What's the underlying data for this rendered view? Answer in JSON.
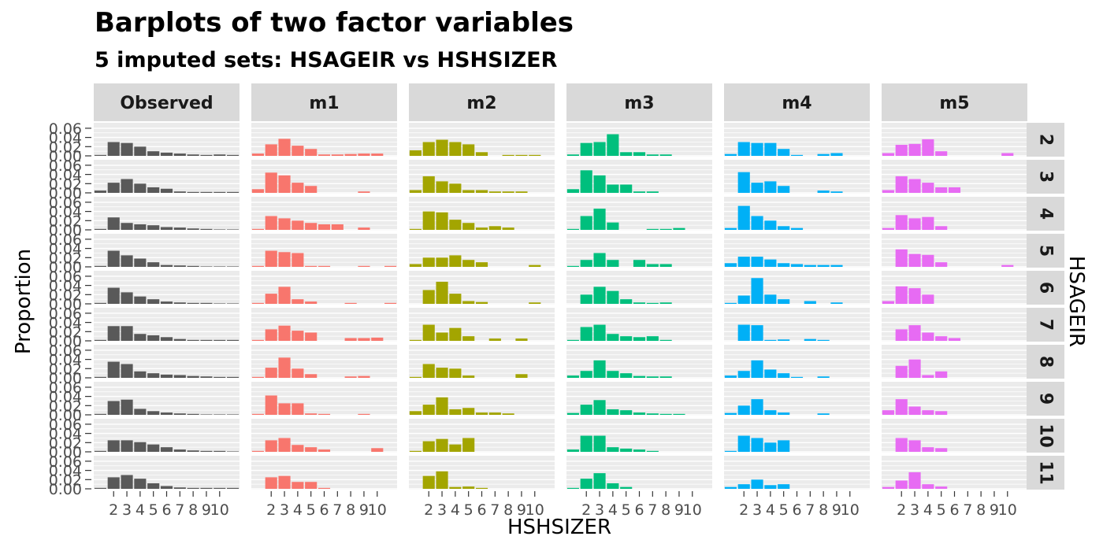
{
  "chart_data": {
    "type": "bar",
    "title": "Barplots of two factor variables",
    "subtitle": "5  imputed sets:  HSAGEIR vs HSHSIZER",
    "xlabel": "HSHSIZER",
    "ylabel": "Proportion",
    "facet_row_label": "HSAGEIR",
    "x_tick_labels": [
      "2",
      "3",
      "4",
      "5",
      "6",
      "7",
      "8",
      "9",
      "10"
    ],
    "y_tick_labels": [
      "0.00",
      "0.02",
      "0.04",
      "0.06"
    ],
    "ylim": [
      0,
      0.065
    ],
    "grid": true,
    "x_categories": [
      "1",
      "2",
      "3",
      "4",
      "5",
      "6",
      "7",
      "8",
      "9",
      "10",
      "11"
    ],
    "columns": [
      {
        "name": "Observed",
        "color": "#595959"
      },
      {
        "name": "m1",
        "color": "#F8766D"
      },
      {
        "name": "m2",
        "color": "#A3A500"
      },
      {
        "name": "m3",
        "color": "#00BF7D"
      },
      {
        "name": "m4",
        "color": "#00B0F6"
      },
      {
        "name": "m5",
        "color": "#E76BF3"
      }
    ],
    "rows": [
      "2",
      "3",
      "4",
      "5",
      "6",
      "7",
      "8",
      "9",
      "10",
      "11"
    ],
    "values": [
      [
        [
          0.002,
          0.03,
          0.028,
          0.02,
          0.01,
          0.007,
          0.005,
          0.003,
          0.002,
          0.003,
          0.002
        ],
        [
          0.005,
          0.022,
          0.03,
          0.02,
          0.012,
          0.009,
          0.003,
          0.002,
          0.002,
          0.002,
          0.002
        ],
        [
          0.002,
          0.027,
          0.015,
          0.012,
          0.01,
          0.006,
          0.005,
          0.003,
          0.002,
          0.001,
          0.001
        ],
        [
          0.002,
          0.035,
          0.025,
          0.018,
          0.01,
          0.004,
          0.003,
          0.002,
          0.001,
          0.001,
          0.001
        ],
        [
          0.002,
          0.035,
          0.025,
          0.016,
          0.01,
          0.005,
          0.003,
          0.002,
          0.002,
          0.001,
          0.001
        ],
        [
          0.002,
          0.032,
          0.032,
          0.015,
          0.012,
          0.008,
          0.004,
          0.002,
          0.002,
          0.002,
          0.002
        ],
        [
          0.002,
          0.035,
          0.03,
          0.014,
          0.01,
          0.007,
          0.006,
          0.004,
          0.003,
          0.002,
          0.002
        ],
        [
          0.002,
          0.03,
          0.033,
          0.013,
          0.008,
          0.005,
          0.003,
          0.002,
          0.001,
          0.001,
          0.001
        ],
        [
          0.002,
          0.025,
          0.025,
          0.021,
          0.016,
          0.01,
          0.005,
          0.003,
          0.002,
          0.002,
          0.001
        ],
        [
          0.002,
          0.025,
          0.03,
          0.022,
          0.012,
          0.006,
          0.003,
          0.002,
          0.002,
          0.002,
          0.002
        ]
      ],
      [
        [
          0.005,
          0.025,
          0.037,
          0.022,
          0.015,
          0.003,
          0.003,
          0.004,
          0.005,
          0.005,
          0.0
        ],
        [
          0.008,
          0.044,
          0.038,
          0.022,
          0.015,
          0.0,
          0.0,
          0.0,
          0.003,
          0.0,
          0.0
        ],
        [
          0.002,
          0.03,
          0.025,
          0.02,
          0.015,
          0.012,
          0.012,
          0.0,
          0.005,
          0.0,
          0.0
        ],
        [
          0.002,
          0.035,
          0.032,
          0.03,
          0.002,
          0.002,
          0.0,
          0.0,
          0.002,
          0.0,
          0.002
        ],
        [
          0.002,
          0.022,
          0.037,
          0.01,
          0.005,
          0.0,
          0.0,
          0.002,
          0.0,
          0.0,
          0.002
        ],
        [
          0.002,
          0.025,
          0.033,
          0.022,
          0.018,
          0.0,
          0.0,
          0.006,
          0.006,
          0.007,
          0.0
        ],
        [
          0.002,
          0.022,
          0.044,
          0.02,
          0.008,
          0.0,
          0.0,
          0.003,
          0.004,
          0.0,
          0.0
        ],
        [
          0.002,
          0.042,
          0.025,
          0.025,
          0.003,
          0.002,
          0.0,
          0.0,
          0.002,
          0.0,
          0.0
        ],
        [
          0.002,
          0.025,
          0.03,
          0.015,
          0.01,
          0.005,
          0.0,
          0.0,
          0.0,
          0.008,
          0.0
        ],
        [
          0.0,
          0.025,
          0.028,
          0.015,
          0.015,
          0.002,
          0.0,
          0.0,
          0.0,
          0.0,
          0.0
        ]
      ],
      [
        [
          0.012,
          0.03,
          0.035,
          0.03,
          0.025,
          0.008,
          0.0,
          0.002,
          0.002,
          0.002,
          0.0
        ],
        [
          0.006,
          0.036,
          0.025,
          0.02,
          0.006,
          0.006,
          0.003,
          0.003,
          0.003,
          0.0,
          0.0
        ],
        [
          0.002,
          0.04,
          0.038,
          0.022,
          0.015,
          0.005,
          0.008,
          0.005,
          0.0,
          0.0,
          0.0
        ],
        [
          0.006,
          0.02,
          0.02,
          0.025,
          0.015,
          0.01,
          0.0,
          0.0,
          0.0,
          0.004,
          0.0
        ],
        [
          0.0,
          0.03,
          0.048,
          0.022,
          0.006,
          0.004,
          0.0,
          0.0,
          0.0,
          0.003,
          0.0
        ],
        [
          0.002,
          0.035,
          0.018,
          0.028,
          0.01,
          0.0,
          0.005,
          0.0,
          0.005,
          0.0,
          0.0
        ],
        [
          0.002,
          0.03,
          0.022,
          0.02,
          0.005,
          0.0,
          0.0,
          0.0,
          0.008,
          0.0,
          0.0
        ],
        [
          0.008,
          0.022,
          0.038,
          0.012,
          0.015,
          0.005,
          0.005,
          0.003,
          0.0,
          0.0,
          0.0
        ],
        [
          0.002,
          0.023,
          0.028,
          0.016,
          0.03,
          0.0,
          0.0,
          0.0,
          0.0,
          0.0,
          0.0
        ],
        [
          0.0,
          0.028,
          0.038,
          0.004,
          0.005,
          0.002,
          0.0,
          0.0,
          0.0,
          0.0,
          0.0
        ]
      ],
      [
        [
          0.003,
          0.028,
          0.03,
          0.047,
          0.008,
          0.008,
          0.003,
          0.003,
          0.0,
          0.0,
          0.0
        ],
        [
          0.008,
          0.049,
          0.038,
          0.018,
          0.018,
          0.003,
          0.003,
          0.0,
          0.0,
          0.0,
          0.0
        ],
        [
          0.002,
          0.03,
          0.046,
          0.016,
          0.0,
          0.0,
          0.002,
          0.002,
          0.004,
          0.0,
          0.0
        ],
        [
          0.002,
          0.015,
          0.03,
          0.015,
          0.0,
          0.015,
          0.006,
          0.006,
          0.0,
          0.0,
          0.0
        ],
        [
          0.0,
          0.02,
          0.037,
          0.028,
          0.01,
          0.003,
          0.002,
          0.003,
          0.0,
          0.0,
          0.0
        ],
        [
          0.002,
          0.03,
          0.035,
          0.015,
          0.01,
          0.008,
          0.01,
          0.002,
          0.0,
          0.0,
          0.0
        ],
        [
          0.005,
          0.015,
          0.038,
          0.015,
          0.01,
          0.004,
          0.003,
          0.003,
          0.0,
          0.0,
          0.0
        ],
        [
          0.004,
          0.022,
          0.032,
          0.012,
          0.01,
          0.005,
          0.003,
          0.002,
          0.002,
          0.0,
          0.0
        ],
        [
          0.005,
          0.035,
          0.035,
          0.01,
          0.007,
          0.005,
          0.002,
          0.0,
          0.0,
          0.0,
          0.0
        ],
        [
          0.002,
          0.022,
          0.034,
          0.012,
          0.004,
          0.0,
          0.0,
          0.0,
          0.0,
          0.0,
          0.0
        ]
      ],
      [
        [
          0.004,
          0.03,
          0.028,
          0.028,
          0.015,
          0.002,
          0.0,
          0.004,
          0.006,
          0.0,
          0.0
        ],
        [
          0.0,
          0.045,
          0.022,
          0.025,
          0.015,
          0.0,
          0.0,
          0.005,
          0.003,
          0.0,
          0.0
        ],
        [
          0.004,
          0.052,
          0.03,
          0.02,
          0.008,
          0.004,
          0.0,
          0.0,
          0.0,
          0.0,
          0.0
        ],
        [
          0.008,
          0.022,
          0.022,
          0.016,
          0.008,
          0.006,
          0.004,
          0.004,
          0.004,
          0.0,
          0.0
        ],
        [
          0.002,
          0.018,
          0.056,
          0.02,
          0.01,
          0.0,
          0.006,
          0.0,
          0.003,
          0.0,
          0.0
        ],
        [
          0.0,
          0.035,
          0.034,
          0.002,
          0.003,
          0.0,
          0.004,
          0.002,
          0.0,
          0.0,
          0.0
        ],
        [
          0.005,
          0.015,
          0.038,
          0.018,
          0.01,
          0.002,
          0.0,
          0.003,
          0.0,
          0.0,
          0.0
        ],
        [
          0.004,
          0.02,
          0.034,
          0.01,
          0.005,
          0.0,
          0.0,
          0.003,
          0.0,
          0.0,
          0.0
        ],
        [
          0.002,
          0.035,
          0.03,
          0.02,
          0.025,
          0.0,
          0.0,
          0.0,
          0.0,
          0.0,
          0.0
        ],
        [
          0.004,
          0.01,
          0.02,
          0.008,
          0.01,
          0.0,
          0.0,
          0.0,
          0.0,
          0.0,
          0.0
        ]
      ],
      [
        [
          0.006,
          0.024,
          0.026,
          0.036,
          0.01,
          0.0,
          0.0,
          0.0,
          0.0,
          0.006,
          0.0
        ],
        [
          0.006,
          0.036,
          0.03,
          0.022,
          0.012,
          0.012,
          0.0,
          0.0,
          0.0,
          0.0,
          0.0
        ],
        [
          0.004,
          0.032,
          0.025,
          0.028,
          0.008,
          0.0,
          0.0,
          0.0,
          0.0,
          0.0,
          0.0
        ],
        [
          0.0,
          0.038,
          0.028,
          0.026,
          0.01,
          0.0,
          0.0,
          0.0,
          0.0,
          0.004,
          0.0
        ],
        [
          0.006,
          0.038,
          0.034,
          0.02,
          0.0,
          0.0,
          0.0,
          0.0,
          0.0,
          0.0,
          0.0
        ],
        [
          0.0,
          0.025,
          0.034,
          0.018,
          0.01,
          0.006,
          0.0,
          0.0,
          0.0,
          0.0,
          0.0
        ],
        [
          0.0,
          0.026,
          0.04,
          0.006,
          0.014,
          0.0,
          0.0,
          0.0,
          0.0,
          0.0,
          0.0
        ],
        [
          0.01,
          0.034,
          0.018,
          0.01,
          0.008,
          0.0,
          0.0,
          0.0,
          0.0,
          0.0,
          0.0
        ],
        [
          0.0,
          0.03,
          0.025,
          0.01,
          0.008,
          0.0,
          0.0,
          0.0,
          0.0,
          0.0,
          0.0
        ],
        [
          0.004,
          0.018,
          0.036,
          0.01,
          0.005,
          0.0,
          0.0,
          0.0,
          0.0,
          0.0,
          0.0
        ]
      ]
    ]
  }
}
